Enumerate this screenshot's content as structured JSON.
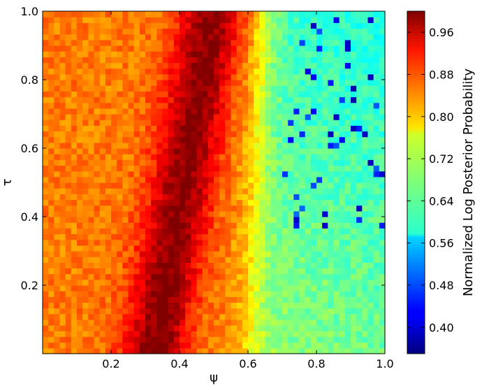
{
  "chart_data": {
    "type": "heatmap",
    "title": "",
    "xlabel": "ψ",
    "ylabel": "τ",
    "xlim": [
      0.0,
      1.0
    ],
    "ylim": [
      0.0,
      1.0
    ],
    "x_ticks": [
      0.2,
      0.4,
      0.6,
      0.8,
      1.0
    ],
    "y_ticks": [
      0.2,
      0.4,
      0.6,
      0.8,
      1.0
    ],
    "x_tick_labels": [
      "0.2",
      "0.4",
      "0.6",
      "0.8",
      "1.0"
    ],
    "y_tick_labels": [
      "0.2",
      "0.4",
      "0.6",
      "0.8",
      "1.0"
    ],
    "colormap": "jet",
    "grid": false,
    "colorbar": {
      "label": "Normalized Log Posterior Probability",
      "range": [
        0.35,
        1.0
      ],
      "ticks": [
        0.4,
        0.48,
        0.56,
        0.64,
        0.72,
        0.8,
        0.88,
        0.96
      ],
      "tick_labels": [
        "0.40",
        "0.48",
        "0.56",
        "0.64",
        "0.72",
        "0.80",
        "0.88",
        "0.96"
      ]
    },
    "grid_size": [
      60,
      60
    ],
    "ridge": {
      "description_values": "peak posterior ≈ 1.0 along ridge from ψ≈0.33 at τ=0 to ψ≈0.50 at τ=1",
      "psi_at_tau0": 0.33,
      "psi_at_tau1": 0.5,
      "peak_value": 1.0
    },
    "left_region_value": 0.84,
    "right_region_value": 0.63,
    "min_value": 0.38
  }
}
